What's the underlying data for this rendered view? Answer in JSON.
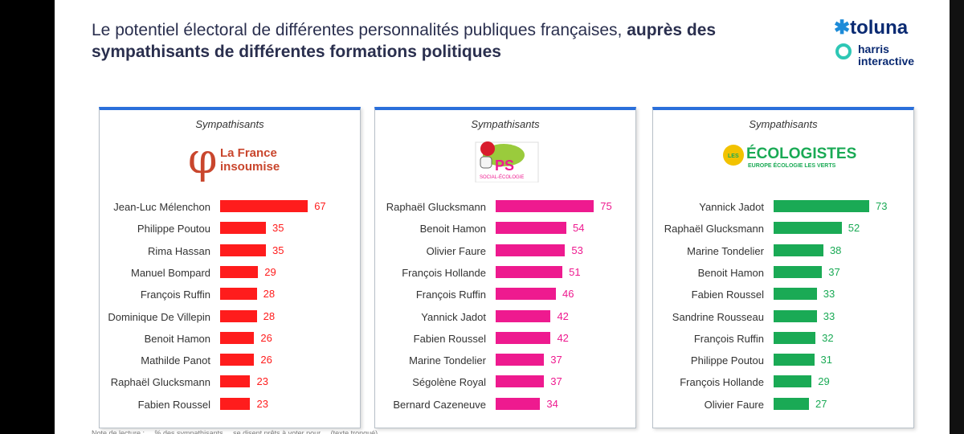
{
  "title": {
    "regular": "Le potentiel électoral de différentes personnalités publiques françaises, ",
    "bold": "auprès des sympathisants de différentes formations politiques"
  },
  "brand": {
    "toluna": "toluna",
    "hi_line1": "harris",
    "hi_line2": "interactive"
  },
  "colors": {
    "lfi": "#ff1c1c",
    "ps": "#ee1a8f",
    "eco": "#1aaa55",
    "title": "#2a2f4e",
    "frame": "#2a6fdb"
  },
  "footnote": "Note de lecture : ... % des sympathisants ... se disent prêts à voter pour ... (texte tronqué)",
  "chart_data": [
    {
      "type": "bar",
      "orientation": "horizontal",
      "subtitle": "Sympathisants",
      "party": "La France insoumise",
      "party_logo_line1": "La France",
      "party_logo_line2": "insoumise",
      "color": "#ff1c1c",
      "categories": [
        "Jean-Luc Mélenchon",
        "Philippe Poutou",
        "Rima Hassan",
        "Manuel Bompard",
        "François Ruffin",
        "Dominique De Villepin",
        "Benoit Hamon",
        "Mathilde Panot",
        "Raphaël Glucksmann",
        "Fabien Roussel"
      ],
      "values": [
        67,
        35,
        35,
        29,
        28,
        28,
        26,
        26,
        23,
        23
      ],
      "xlim": [
        0,
        100
      ]
    },
    {
      "type": "bar",
      "orientation": "horizontal",
      "subtitle": "Sympathisants",
      "party": "PS",
      "party_logo_line1": "PS",
      "party_logo_line2": "SOCIAL-ÉCOLOGIE",
      "color": "#ee1a8f",
      "categories": [
        "Raphaël Glucksmann",
        "Benoit Hamon",
        "Olivier Faure",
        "François Hollande",
        "François Ruffin",
        "Yannick Jadot",
        "Fabien Roussel",
        "Marine Tondelier",
        "Ségolène Royal",
        "Bernard Cazeneuve"
      ],
      "values": [
        75,
        54,
        53,
        51,
        46,
        42,
        42,
        37,
        37,
        34
      ],
      "xlim": [
        0,
        100
      ]
    },
    {
      "type": "bar",
      "orientation": "horizontal",
      "subtitle": "Sympathisants",
      "party": "Les Écologistes",
      "party_logo_line1": "ÉCOLOGISTES",
      "party_logo_line2": "EUROPE ÉCOLOGIE LES VERTS",
      "party_logo_prefix": "LES",
      "color": "#1aaa55",
      "categories": [
        "Yannick Jadot",
        "Raphaël Glucksmann",
        "Marine Tondelier",
        "Benoit Hamon",
        "Fabien Roussel",
        "Sandrine Rousseau",
        "François Ruffin",
        "Philippe Poutou",
        "François Hollande",
        "Olivier Faure"
      ],
      "values": [
        73,
        52,
        38,
        37,
        33,
        33,
        32,
        31,
        29,
        27
      ],
      "xlim": [
        0,
        100
      ]
    }
  ]
}
